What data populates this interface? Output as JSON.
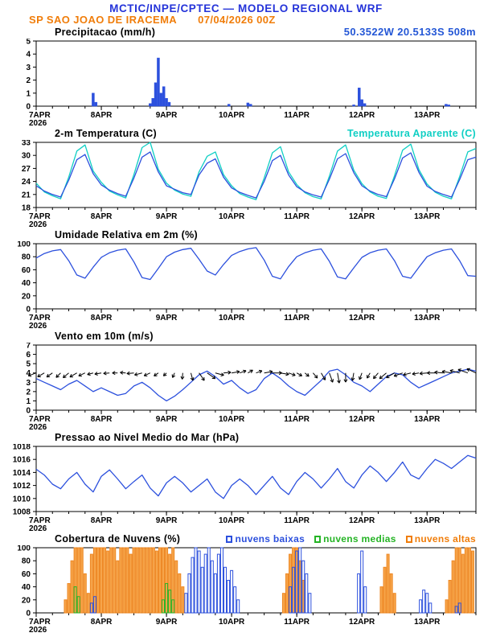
{
  "header": {
    "title": "MCTIC/INPE/CPTEC — MODELO REGIONAL WRF",
    "station": "SP SAO JOAO DE IRACEMA",
    "run_datetime": "07/04/2026 00Z",
    "coords": "50.3522W 20.5133S 508m",
    "title_color": "#2433d9",
    "station_color": "#f07d0a",
    "coords_color": "#2457d6"
  },
  "axis": {
    "x_range": [
      0,
      6.75
    ],
    "minor_step": 0.25,
    "x_ticks": [
      0,
      1,
      2,
      3,
      4,
      5,
      6
    ],
    "x_tick_labels": [
      "7APR",
      "8APR",
      "9APR",
      "10APR",
      "11APR",
      "12APR",
      "13APR"
    ],
    "x_year_label": "2026"
  },
  "chart_data": [
    {
      "id": "precip",
      "type": "bar",
      "title": "Precipitacao (mm/h)",
      "ylabel": "mm/h",
      "ylim": [
        0,
        5
      ],
      "yticks": [
        0,
        1,
        2,
        3,
        4,
        5
      ],
      "bar_color": "#2c50dd",
      "bars": {
        "t": [
          0.875,
          0.917,
          1.75,
          1.792,
          1.833,
          1.875,
          1.917,
          1.958,
          2.0,
          2.042,
          2.958,
          3.25,
          3.292,
          4.875,
          4.958,
          5.0,
          5.042,
          6.292,
          6.333
        ],
        "v": [
          1.0,
          0.3,
          0.2,
          0.6,
          1.8,
          3.7,
          1.0,
          1.5,
          0.6,
          0.3,
          0.15,
          0.25,
          0.15,
          0.1,
          1.4,
          0.5,
          0.2,
          0.15,
          0.1
        ]
      }
    },
    {
      "id": "temp2m",
      "type": "line",
      "title": "2-m Temperatura (C)",
      "right_label": "Temperatura Aparente (C)",
      "right_label_color": "#10cfc4",
      "ylim": [
        18,
        33
      ],
      "yticks": [
        18,
        21,
        24,
        27,
        30,
        33
      ],
      "x_step": 0.125,
      "series": [
        {
          "name": "Temperatura Aparente",
          "color": "#10cfc4",
          "values": [
            23.6,
            21.6,
            20.7,
            20.0,
            25.0,
            31.0,
            32.4,
            26.4,
            23.8,
            21.8,
            20.9,
            20.2,
            25.6,
            31.8,
            33.0,
            26.8,
            23.6,
            22.0,
            21.1,
            20.6,
            26.2,
            29.8,
            30.8,
            25.6,
            23.0,
            21.2,
            20.4,
            19.8,
            24.8,
            30.6,
            32.0,
            26.2,
            23.3,
            21.4,
            20.5,
            20.0,
            25.2,
            31.0,
            32.4,
            26.6,
            23.5,
            21.6,
            20.6,
            20.1,
            25.3,
            31.2,
            32.6,
            26.7,
            23.4,
            21.5,
            20.6,
            20.0,
            25.1,
            30.8,
            31.6
          ]
        },
        {
          "name": "Temperatura",
          "color": "#2c50dd",
          "values": [
            23.0,
            21.8,
            21.0,
            20.4,
            24.3,
            29.0,
            30.2,
            25.8,
            23.2,
            22.0,
            21.2,
            20.6,
            24.8,
            29.6,
            30.8,
            26.2,
            23.0,
            22.2,
            21.4,
            21.0,
            25.5,
            28.2,
            29.2,
            25.0,
            22.5,
            21.5,
            20.8,
            20.2,
            24.0,
            28.8,
            30.0,
            25.5,
            22.8,
            21.6,
            20.9,
            20.4,
            24.5,
            29.2,
            30.4,
            26.0,
            23.0,
            21.8,
            21.0,
            20.5,
            24.6,
            29.4,
            30.6,
            26.1,
            22.9,
            21.7,
            21.0,
            20.4,
            24.4,
            29.0,
            29.6
          ]
        }
      ]
    },
    {
      "id": "rh2m",
      "type": "line",
      "title": "Umidade Relativa em 2m (%)",
      "ylim": [
        0,
        100
      ],
      "yticks": [
        0,
        20,
        40,
        60,
        80,
        100
      ],
      "x_step": 0.125,
      "series": [
        {
          "name": "Umidade Relativa",
          "color": "#2c50dd",
          "values": [
            78,
            85,
            89,
            91,
            74,
            52,
            47,
            64,
            79,
            86,
            90,
            92,
            72,
            48,
            45,
            62,
            80,
            87,
            91,
            93,
            76,
            58,
            52,
            68,
            82,
            88,
            92,
            94,
            75,
            50,
            46,
            65,
            80,
            86,
            90,
            92,
            73,
            49,
            46,
            63,
            79,
            86,
            90,
            92,
            74,
            50,
            47,
            64,
            80,
            86,
            90,
            92,
            74,
            51,
            50
          ]
        }
      ]
    },
    {
      "id": "wind10m",
      "type": "wind",
      "title": "Vento em 10m (m/s)",
      "ylim": [
        0,
        7
      ],
      "yticks": [
        0,
        1,
        2,
        3,
        4,
        5,
        6,
        7
      ],
      "x_step": 0.125,
      "series": [
        {
          "name": "Velocidade do Vento",
          "color": "#2c50dd",
          "values": [
            3.4,
            3.0,
            2.6,
            2.2,
            2.8,
            3.2,
            2.6,
            2.0,
            2.4,
            2.0,
            1.6,
            1.8,
            2.6,
            3.0,
            2.4,
            1.6,
            1.0,
            1.5,
            2.2,
            3.0,
            3.8,
            4.2,
            3.6,
            2.8,
            3.2,
            2.4,
            1.8,
            2.2,
            3.4,
            4.0,
            3.4,
            2.6,
            2.0,
            1.6,
            2.4,
            3.2,
            4.2,
            4.4,
            3.8,
            3.0,
            2.6,
            2.0,
            2.8,
            3.6,
            4.0,
            3.8,
            3.0,
            2.4,
            2.8,
            3.2,
            3.6,
            4.0,
            4.2,
            4.4,
            4.2
          ]
        }
      ],
      "arrows": {
        "anchor": 4.0,
        "t_step": 0.125,
        "scale": 2.2,
        "color": "#000000",
        "dir_deg": [
          200,
          210,
          215,
          225,
          220,
          210,
          205,
          195,
          190,
          185,
          180,
          175,
          185,
          195,
          205,
          215,
          225,
          245,
          265,
          285,
          305,
          325,
          345,
          5,
          10,
          20,
          30,
          20,
          10,
          0,
          350,
          340,
          330,
          320,
          310,
          300,
          290,
          280,
          270,
          260,
          250,
          240,
          230,
          220,
          210,
          200,
          195,
          190,
          185,
          180,
          175,
          170,
          165,
          160,
          155
        ]
      }
    },
    {
      "id": "slp",
      "type": "line",
      "title": "Pressao ao Nivel Medio do Mar (hPa)",
      "ylim": [
        1008,
        1018
      ],
      "yticks": [
        1008,
        1010,
        1012,
        1014,
        1016,
        1018
      ],
      "x_step": 0.125,
      "series": [
        {
          "name": "Pressao",
          "color": "#2c50dd",
          "values": [
            1014.5,
            1013.6,
            1012.2,
            1011.5,
            1013.0,
            1014.0,
            1012.2,
            1011.0,
            1013.4,
            1014.4,
            1013.0,
            1011.5,
            1012.6,
            1013.6,
            1011.6,
            1010.4,
            1012.4,
            1013.4,
            1012.4,
            1011.0,
            1012.0,
            1013.0,
            1011.0,
            1010.0,
            1012.0,
            1013.0,
            1012.0,
            1010.6,
            1012.0,
            1013.4,
            1011.6,
            1010.6,
            1012.6,
            1014.0,
            1013.0,
            1011.6,
            1013.0,
            1014.6,
            1012.6,
            1011.6,
            1013.6,
            1015.0,
            1014.0,
            1012.6,
            1014.0,
            1015.6,
            1013.6,
            1013.0,
            1014.6,
            1016.0,
            1015.4,
            1014.6,
            1015.6,
            1016.6,
            1016.2
          ]
        }
      ]
    },
    {
      "id": "clouds",
      "type": "multibar",
      "title": "Cobertura de Nuvens (%)",
      "ylim": [
        0,
        100
      ],
      "yticks": [
        0,
        20,
        40,
        60,
        80,
        100
      ],
      "legend": [
        {
          "label": "nuvens baixas",
          "color": "#2c50dd"
        },
        {
          "label": "nuvens medias",
          "color": "#25b425"
        },
        {
          "label": "nuvens altas",
          "color": "#f07d0a"
        }
      ],
      "series": [
        {
          "name": "nuvens altas",
          "color": "#ee8722",
          "fill": "#f6a54b",
          "bars": {
            "t": [
              0.45,
              0.5,
              0.55,
              0.6,
              0.65,
              0.7,
              0.75,
              0.8,
              0.85,
              0.9,
              0.95,
              1.0,
              1.05,
              1.1,
              1.15,
              1.2,
              1.25,
              1.3,
              1.35,
              1.4,
              1.45,
              1.5,
              1.55,
              1.6,
              1.65,
              1.7,
              1.75,
              1.8,
              1.85,
              1.9,
              1.95,
              2.0,
              2.05,
              2.1,
              2.15,
              2.2,
              2.25,
              3.8,
              3.85,
              3.9,
              3.95,
              4.0,
              4.05,
              4.1,
              5.3,
              5.35,
              5.4,
              5.45,
              5.5,
              6.3,
              6.35,
              6.4,
              6.45,
              6.5,
              6.55,
              6.6,
              6.65,
              6.7
            ],
            "v": [
              20,
              45,
              80,
              100,
              100,
              100,
              60,
              30,
              90,
              100,
              100,
              100,
              100,
              95,
              100,
              100,
              80,
              100,
              100,
              100,
              90,
              100,
              100,
              100,
              100,
              100,
              100,
              100,
              95,
              100,
              100,
              100,
              90,
              100,
              80,
              60,
              40,
              30,
              60,
              90,
              100,
              100,
              80,
              50,
              40,
              70,
              90,
              60,
              30,
              20,
              50,
              80,
              100,
              100,
              90,
              100,
              100,
              95
            ]
          }
        },
        {
          "name": "nuvens medias",
          "color": "#25b425",
          "fill": "none",
          "bars": {
            "t": [
              0.6,
              0.65,
              1.95,
              2.0,
              2.05,
              2.1
            ],
            "v": [
              40,
              25,
              20,
              45,
              35,
              20
            ]
          }
        },
        {
          "name": "nuvens baixas",
          "color": "#2c50dd",
          "fill": "none",
          "bars": {
            "t": [
              0.85,
              0.9,
              2.3,
              2.35,
              2.4,
              2.45,
              2.5,
              2.55,
              2.6,
              2.65,
              2.7,
              2.75,
              2.8,
              2.85,
              2.9,
              2.95,
              3.0,
              3.05,
              3.1,
              3.9,
              3.95,
              4.0,
              4.05,
              4.1,
              4.15,
              4.2,
              4.95,
              5.0,
              5.05,
              5.9,
              5.95,
              6.0,
              6.05,
              6.45,
              6.5
            ],
            "v": [
              15,
              25,
              30,
              60,
              85,
              100,
              95,
              70,
              90,
              100,
              80,
              60,
              90,
              100,
              70,
              50,
              65,
              40,
              20,
              40,
              70,
              95,
              100,
              80,
              60,
              30,
              60,
              95,
              40,
              20,
              35,
              30,
              15,
              10,
              15
            ]
          }
        }
      ]
    }
  ]
}
